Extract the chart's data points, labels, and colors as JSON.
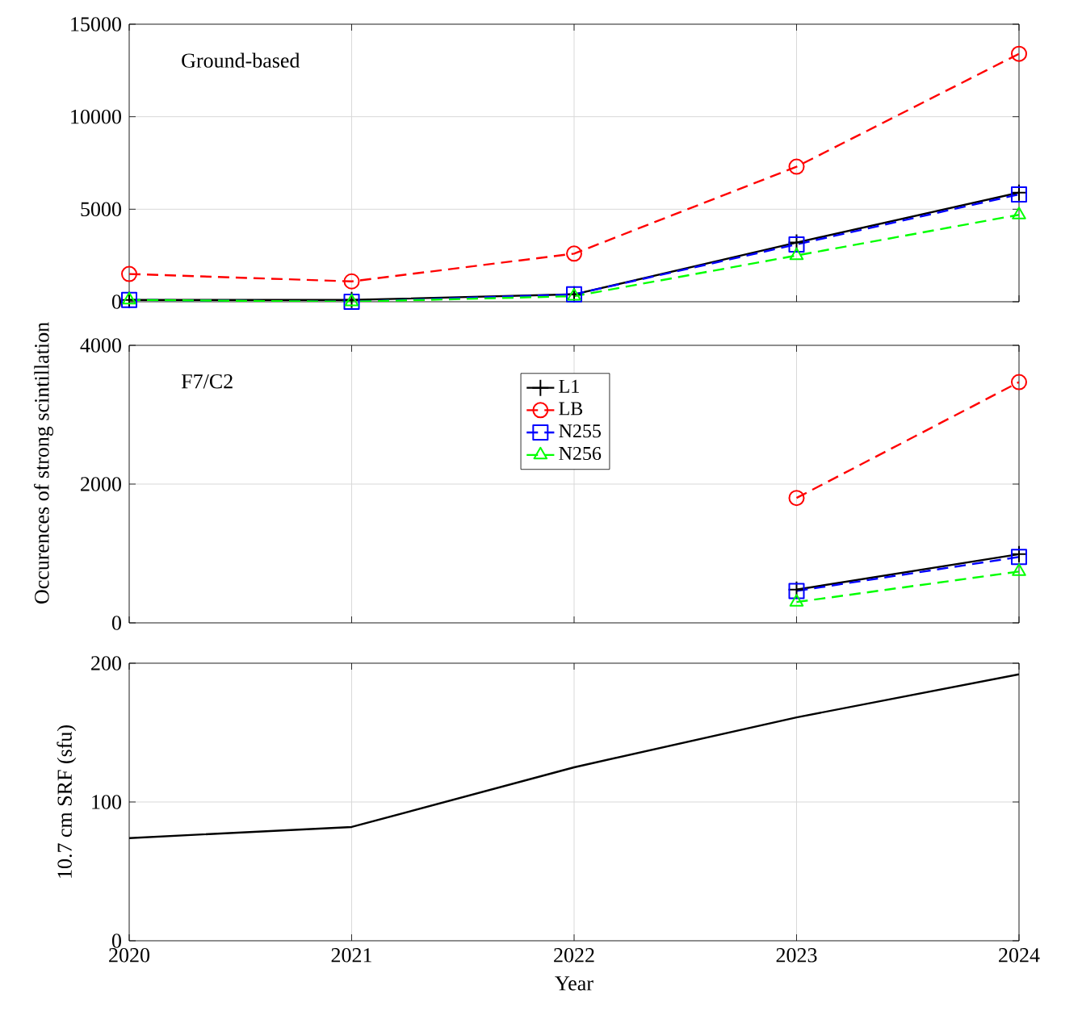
{
  "chart_data": [
    {
      "type": "line",
      "title": "Ground-based",
      "ylabel": "Occurences of strong scintillation",
      "x": [
        2020,
        2021,
        2022,
        2023,
        2024
      ],
      "xlim": [
        2020,
        2024
      ],
      "xticks": [
        2020,
        2021,
        2022,
        2023,
        2024
      ],
      "ylim": [
        0,
        15000
      ],
      "yticks": [
        0,
        5000,
        10000,
        15000
      ],
      "grid": true,
      "tick_labels": "y",
      "series": [
        {
          "color": "#000000",
          "marker": "cross",
          "line_style": "solid",
          "values": [
            100,
            100,
            400,
            3200,
            5900
          ]
        },
        {
          "color": "#ff0000",
          "marker": "circle",
          "line_style": "dashed",
          "values": [
            1500,
            1100,
            2600,
            7300,
            13400
          ]
        },
        {
          "color": "#0000ff",
          "marker": "square",
          "line_style": "dashed",
          "values": [
            100,
            0,
            400,
            3100,
            5800
          ]
        },
        {
          "color": "#00ff00",
          "marker": "triangle",
          "line_style": "dashed",
          "values": [
            100,
            0,
            300,
            2500,
            4700
          ]
        }
      ]
    },
    {
      "type": "line",
      "title": "F7/C2",
      "x": [
        2023,
        2024
      ],
      "xlim": [
        2020,
        2024
      ],
      "xticks": [
        2020,
        2021,
        2022,
        2023,
        2024
      ],
      "ylim": [
        0,
        4000
      ],
      "yticks": [
        0,
        2000,
        4000
      ],
      "grid": true,
      "tick_labels": "y",
      "legend": "top",
      "series": [
        {
          "name": "L1",
          "color": "#000000",
          "marker": "cross",
          "line_style": "solid",
          "values": [
            480,
            990
          ]
        },
        {
          "name": "LB",
          "color": "#ff0000",
          "marker": "circle",
          "line_style": "dashed",
          "values": [
            1800,
            3470
          ]
        },
        {
          "name": "N255",
          "color": "#0000ff",
          "marker": "square",
          "line_style": "dashed",
          "values": [
            460,
            950
          ]
        },
        {
          "name": "N256",
          "color": "#00ff00",
          "marker": "triangle",
          "line_style": "dashed",
          "values": [
            300,
            740
          ]
        }
      ]
    },
    {
      "type": "line",
      "xlabel": "Year",
      "ylabel": "10.7 cm SRF (sfu)",
      "x": [
        2020,
        2021,
        2022,
        2023,
        2024
      ],
      "xlim": [
        2020,
        2024
      ],
      "xticks": [
        2020,
        2021,
        2022,
        2023,
        2024
      ],
      "ylim": [
        0,
        200
      ],
      "yticks": [
        0,
        100,
        200
      ],
      "grid": true,
      "marker": "none",
      "line_style": "solid",
      "series": [
        {
          "color": "#000000",
          "values": [
            74,
            82,
            125,
            161,
            192
          ]
        }
      ]
    }
  ]
}
